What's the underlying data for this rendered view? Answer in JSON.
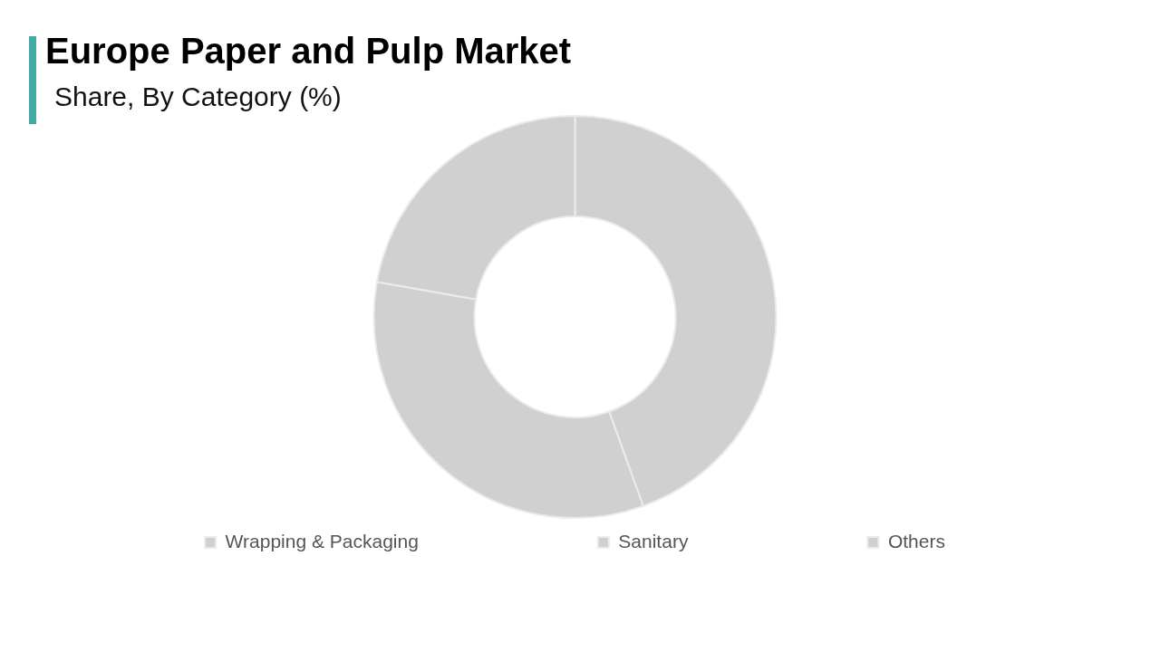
{
  "chart_data": {
    "type": "donut",
    "title": "Europe Paper and Pulp Market",
    "subtitle": "Share, By Category (%)",
    "categories": [
      "Wrapping & Packaging",
      "Sanitary",
      "Others"
    ],
    "values": [
      44.5,
      33.3,
      22.2
    ],
    "colors": [
      "#d1d0d1",
      "#d1d0d1",
      "#d1d0d1"
    ],
    "legend": "bottom"
  }
}
